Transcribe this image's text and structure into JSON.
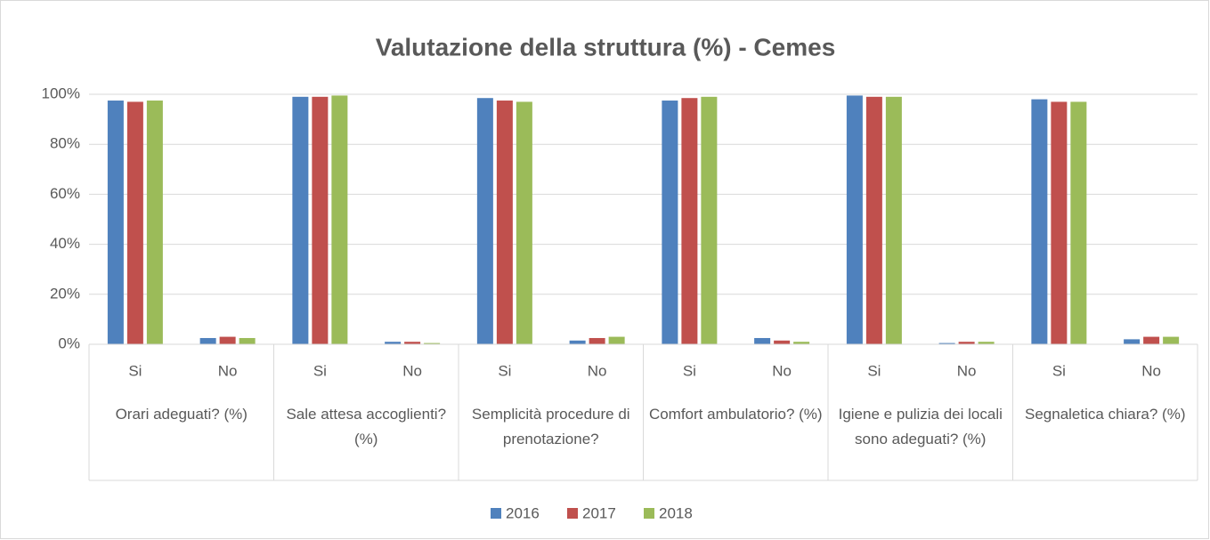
{
  "chart_data": {
    "type": "bar",
    "title": "Valutazione della struttura (%) - Cemes",
    "categories": [
      "Si",
      "No",
      "Si",
      "No",
      "Si",
      "No",
      "Si",
      "No",
      "Si",
      "No",
      "Si",
      "No"
    ],
    "groups": [
      "Orari adeguati? (%)",
      "Sale attesa accoglienti? (%)",
      "Semplicità procedure di prenotazione?",
      "Comfort ambulatorio? (%)",
      "Igiene e pulizia dei locali sono adeguati? (%)",
      "Segnaletica chiara? (%)"
    ],
    "series": [
      {
        "name": "2016",
        "color": "#4f81bd",
        "values": [
          97.5,
          2.5,
          99,
          1,
          98.5,
          1.5,
          97.5,
          2.5,
          99.5,
          0.5,
          98,
          2
        ]
      },
      {
        "name": "2017",
        "color": "#c0504d",
        "values": [
          97,
          3,
          99,
          1,
          97.5,
          2.5,
          98.5,
          1.5,
          99,
          1,
          97,
          3
        ]
      },
      {
        "name": "2018",
        "color": "#9bbb59",
        "values": [
          97.5,
          2.5,
          99.5,
          0.5,
          97,
          3,
          99,
          1,
          99,
          1,
          97,
          3
        ]
      }
    ],
    "ylim": [
      0,
      100
    ],
    "yticks": [
      {
        "value": 0,
        "label": "0%"
      },
      {
        "value": 20,
        "label": "20%"
      },
      {
        "value": 40,
        "label": "40%"
      },
      {
        "value": 60,
        "label": "60%"
      },
      {
        "value": 80,
        "label": "80%"
      },
      {
        "value": 100,
        "label": "100%"
      }
    ],
    "grid": true,
    "legend": "bottom"
  }
}
